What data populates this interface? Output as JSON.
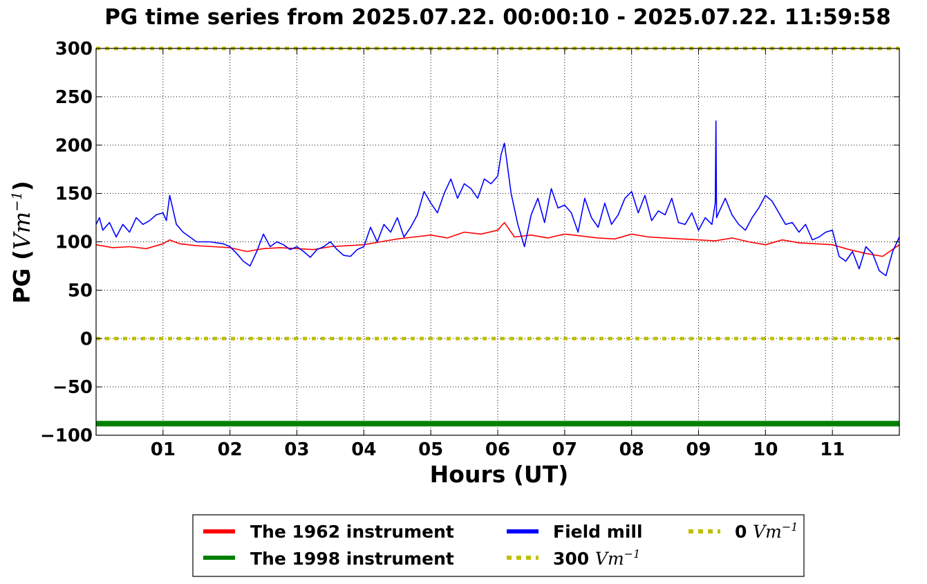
{
  "chart_data": {
    "type": "line",
    "title": "PG time series from 2025.07.22. 00:00:10 - 2025.07.22. 11:59:58",
    "xlabel": "Hours (UT)",
    "ylabel": "PG (",
    "ylabel_unit": "Vm",
    "ylabel_exp": "−1",
    "ylabel_close": ")",
    "xlim": [
      0,
      12
    ],
    "ylim": [
      -100,
      300
    ],
    "grid": true,
    "legend_position": "bottom-outside",
    "x_ticks": [
      1,
      2,
      3,
      4,
      5,
      6,
      7,
      8,
      9,
      10,
      11
    ],
    "x_tick_labels": [
      "01",
      "02",
      "03",
      "04",
      "05",
      "06",
      "07",
      "08",
      "09",
      "10",
      "11"
    ],
    "y_ticks": [
      300,
      250,
      200,
      150,
      100,
      50,
      0,
      -50,
      -100
    ],
    "y_tick_labels": [
      "300",
      "250",
      "200",
      "150",
      "100",
      "50",
      "0",
      "−50",
      "−100"
    ],
    "series": [
      {
        "name": "The 1962 instrument",
        "color": "#ff0000",
        "style": "solid",
        "x": [
          0,
          0.25,
          0.5,
          0.75,
          1.0,
          1.1,
          1.25,
          1.5,
          1.75,
          2.0,
          2.25,
          2.5,
          2.75,
          3.0,
          3.25,
          3.5,
          3.75,
          4.0,
          4.25,
          4.5,
          4.75,
          5.0,
          5.25,
          5.5,
          5.75,
          6.0,
          6.1,
          6.25,
          6.5,
          6.75,
          7.0,
          7.25,
          7.5,
          7.75,
          8.0,
          8.25,
          8.5,
          8.75,
          9.0,
          9.25,
          9.5,
          9.75,
          10.0,
          10.25,
          10.5,
          10.75,
          11.0,
          11.25,
          11.5,
          11.75,
          12.0
        ],
        "y": [
          97,
          94,
          95,
          93,
          98,
          102,
          98,
          96,
          95,
          94,
          90,
          93,
          94,
          93,
          92,
          95,
          96,
          97,
          100,
          103,
          105,
          107,
          104,
          110,
          108,
          112,
          120,
          105,
          107,
          104,
          108,
          106,
          104,
          103,
          108,
          105,
          104,
          103,
          102,
          101,
          104,
          100,
          97,
          102,
          99,
          98,
          97,
          92,
          88,
          85,
          97
        ]
      },
      {
        "name": "The 1998 instrument",
        "color": "#008000",
        "style": "solid",
        "x": [
          0,
          12
        ],
        "y": [
          -88,
          -88
        ]
      },
      {
        "name": "Field mill",
        "color": "#0000ff",
        "style": "solid",
        "x": [
          0,
          0.05,
          0.1,
          0.2,
          0.3,
          0.4,
          0.5,
          0.6,
          0.7,
          0.8,
          0.9,
          1.0,
          1.05,
          1.1,
          1.2,
          1.3,
          1.4,
          1.5,
          1.7,
          1.9,
          2.0,
          2.1,
          2.2,
          2.3,
          2.4,
          2.5,
          2.6,
          2.7,
          2.8,
          2.9,
          3.0,
          3.1,
          3.2,
          3.3,
          3.4,
          3.5,
          3.6,
          3.7,
          3.8,
          3.9,
          4.0,
          4.1,
          4.2,
          4.3,
          4.4,
          4.5,
          4.6,
          4.7,
          4.8,
          4.9,
          5.0,
          5.1,
          5.2,
          5.3,
          5.4,
          5.5,
          5.6,
          5.7,
          5.8,
          5.9,
          6.0,
          6.05,
          6.1,
          6.2,
          6.3,
          6.4,
          6.5,
          6.6,
          6.7,
          6.8,
          6.9,
          7.0,
          7.1,
          7.2,
          7.3,
          7.4,
          7.5,
          7.6,
          7.7,
          7.8,
          7.9,
          8.0,
          8.1,
          8.2,
          8.3,
          8.4,
          8.5,
          8.6,
          8.7,
          8.8,
          8.9,
          9.0,
          9.1,
          9.2,
          9.25,
          9.26,
          9.27,
          9.3,
          9.4,
          9.5,
          9.6,
          9.7,
          9.8,
          9.9,
          10.0,
          10.1,
          10.2,
          10.3,
          10.4,
          10.5,
          10.6,
          10.7,
          10.8,
          10.9,
          11.0,
          11.1,
          11.2,
          11.3,
          11.4,
          11.5,
          11.6,
          11.7,
          11.8,
          11.9,
          12.0
        ],
        "y": [
          118,
          125,
          112,
          120,
          105,
          118,
          110,
          125,
          118,
          122,
          128,
          130,
          122,
          148,
          118,
          110,
          105,
          100,
          100,
          98,
          95,
          88,
          80,
          75,
          90,
          108,
          95,
          100,
          97,
          92,
          95,
          90,
          84,
          92,
          95,
          100,
          92,
          86,
          85,
          92,
          95,
          115,
          100,
          118,
          110,
          125,
          105,
          115,
          128,
          152,
          140,
          130,
          150,
          165,
          145,
          160,
          155,
          145,
          165,
          160,
          168,
          190,
          202,
          150,
          118,
          95,
          128,
          145,
          120,
          155,
          135,
          138,
          130,
          110,
          145,
          125,
          115,
          140,
          118,
          128,
          145,
          152,
          130,
          148,
          122,
          132,
          128,
          145,
          120,
          118,
          130,
          112,
          125,
          118,
          140,
          225,
          125,
          130,
          145,
          128,
          118,
          112,
          125,
          135,
          148,
          142,
          130,
          118,
          120,
          110,
          118,
          102,
          105,
          110,
          112,
          85,
          80,
          90,
          72,
          95,
          88,
          70,
          65,
          90,
          105
        ]
      },
      {
        "name": "300",
        "name_unit": "Vm",
        "name_exp": "−1",
        "color": "#bfbf00",
        "style": "dotted",
        "x": [
          0,
          12
        ],
        "y": [
          300,
          300
        ]
      },
      {
        "name": "0",
        "name_unit": "Vm",
        "name_exp": "−1",
        "color": "#bfbf00",
        "style": "dotted",
        "x": [
          0,
          12
        ],
        "y": [
          0,
          0
        ]
      }
    ]
  }
}
